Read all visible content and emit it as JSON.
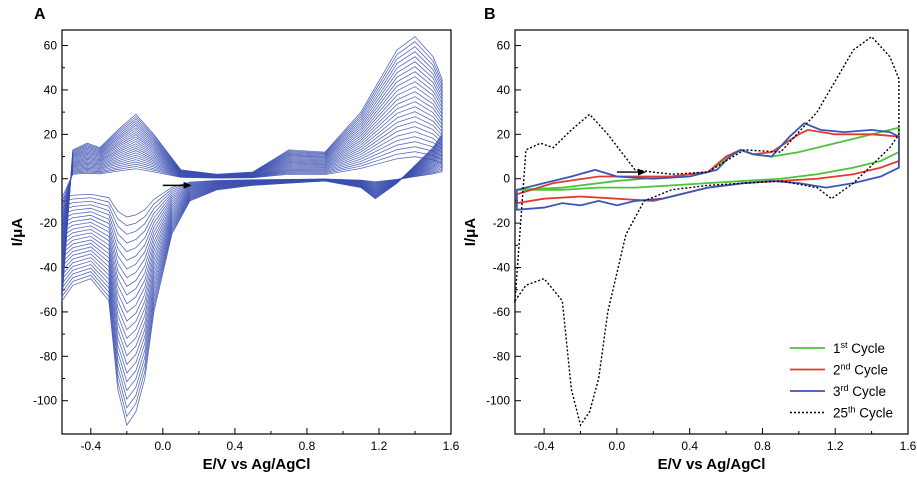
{
  "figure": {
    "panels": [
      "A",
      "B"
    ]
  },
  "chart_data": [
    {
      "panel": "A",
      "type": "line",
      "title": "",
      "xlabel": "E/V vs Ag/AgCl",
      "ylabel": "I/μA",
      "xlim": [
        -0.56,
        1.6
      ],
      "ylim": [
        -115,
        67
      ],
      "xticks": [
        -0.4,
        0.0,
        0.4,
        0.8,
        1.2,
        1.6
      ],
      "xtick_labels": [
        "-0.4",
        "0.0",
        "0.4",
        "0.8",
        "1.2",
        "1.6"
      ],
      "yticks": [
        -100,
        -80,
        -60,
        -40,
        -20,
        0,
        20,
        40,
        60
      ],
      "ytick_labels": [
        "-100",
        "-80",
        "-60",
        "-40",
        "-20",
        "0",
        "20",
        "40",
        "60"
      ],
      "grid": false,
      "cycles_shown": 25,
      "scan_direction": "anodic (positive-going)",
      "series_color": "#3b4fb0",
      "anodic_peaks_final": {
        "x": [
          -0.42,
          -0.15,
          0.7,
          1.4
        ],
        "y": [
          16,
          29,
          13,
          64
        ]
      },
      "cathodic_peaks_final": {
        "x": [
          -0.2,
          0.2,
          1.15
        ],
        "y": [
          -111,
          -12,
          -9
        ]
      },
      "envelope_final_cycle_x": [
        -0.56,
        -0.5,
        -0.42,
        -0.35,
        -0.25,
        -0.15,
        -0.05,
        0.1,
        0.3,
        0.5,
        0.7,
        0.9,
        1.1,
        1.3,
        1.4,
        1.5,
        1.55,
        1.55,
        1.5,
        1.4,
        1.3,
        1.18,
        1.1,
        0.9,
        0.7,
        0.5,
        0.3,
        0.15,
        0.05,
        -0.05,
        -0.1,
        -0.15,
        -0.2,
        -0.25,
        -0.3,
        -0.4,
        -0.5,
        -0.56
      ],
      "envelope_final_cycle_y": [
        -55,
        13,
        16,
        14,
        22,
        29,
        20,
        4,
        2,
        3,
        13,
        12,
        30,
        58,
        64,
        55,
        45,
        20,
        14,
        6,
        -2,
        -9,
        -4,
        -1,
        -2,
        -3,
        -5,
        -10,
        -25,
        -60,
        -90,
        -105,
        -111,
        -95,
        -55,
        -45,
        -48,
        -55
      ]
    },
    {
      "panel": "B",
      "type": "line",
      "title": "",
      "xlabel": "E/V vs Ag/AgCl",
      "ylabel": "I/μA",
      "xlim": [
        -0.56,
        1.6
      ],
      "ylim": [
        -115,
        67
      ],
      "xticks": [
        -0.4,
        0.0,
        0.4,
        0.8,
        1.2,
        1.6
      ],
      "xtick_labels": [
        "-0.4",
        "0.0",
        "0.4",
        "0.8",
        "1.2",
        "1.6"
      ],
      "yticks": [
        -100,
        -80,
        -60,
        -40,
        -20,
        0,
        20,
        40,
        60
      ],
      "ytick_labels": [
        "-100",
        "-80",
        "-60",
        "-40",
        "-20",
        "0",
        "20",
        "40",
        "60"
      ],
      "grid": false,
      "legend_position": "bottom-right",
      "series": [
        {
          "name_main": "1",
          "name_sup": "st",
          "name_rest": " Cycle",
          "color": "#4cc43a",
          "dash": "solid",
          "x": [
            -0.55,
            -0.3,
            0.0,
            0.3,
            0.5,
            0.6,
            0.68,
            0.75,
            0.85,
            1.0,
            1.2,
            1.4,
            1.5,
            1.55,
            1.55,
            1.45,
            1.3,
            1.1,
            0.9,
            0.7,
            0.5,
            0.3,
            0.1,
            -0.1,
            -0.3,
            -0.55
          ],
          "y": [
            -5,
            -4,
            -1,
            1,
            3,
            9,
            13,
            11,
            10,
            12,
            16,
            20,
            22,
            23,
            12,
            8,
            5,
            2,
            0,
            -1,
            -2,
            -3,
            -4,
            -4,
            -5,
            -5
          ]
        },
        {
          "name_main": "2",
          "name_sup": "nd",
          "name_rest": " Cycle",
          "color": "#e23a2e",
          "dash": "solid",
          "x": [
            -0.55,
            -0.35,
            -0.1,
            0.1,
            0.3,
            0.5,
            0.6,
            0.68,
            0.75,
            0.85,
            1.0,
            1.05,
            1.2,
            1.4,
            1.55,
            1.55,
            1.45,
            1.3,
            1.1,
            0.9,
            0.7,
            0.5,
            0.3,
            0.2,
            0.0,
            -0.2,
            -0.4,
            -0.55
          ],
          "y": [
            -7,
            -2,
            1,
            1,
            1,
            3,
            10,
            13,
            11,
            12,
            20,
            22,
            20,
            20,
            19,
            8,
            5,
            2,
            0,
            -1,
            -2,
            -4,
            -8,
            -10,
            -9,
            -8,
            -9,
            -11
          ]
        },
        {
          "name_main": "3",
          "name_sup": "rd",
          "name_rest": " Cycle",
          "color": "#3a56b5",
          "dash": "solid",
          "x": [
            -0.55,
            -0.4,
            -0.25,
            -0.12,
            0.0,
            0.2,
            0.4,
            0.55,
            0.62,
            0.68,
            0.75,
            0.85,
            0.95,
            1.03,
            1.12,
            1.25,
            1.4,
            1.5,
            1.55,
            1.55,
            1.45,
            1.3,
            1.15,
            1.0,
            0.85,
            0.7,
            0.5,
            0.35,
            0.25,
            0.1,
            0.0,
            -0.1,
            -0.2,
            -0.3,
            -0.4,
            -0.55
          ],
          "y": [
            -5,
            -2,
            1,
            4,
            1,
            0,
            1,
            4,
            10,
            13,
            11,
            10,
            19,
            25,
            22,
            21,
            22,
            21,
            19,
            5,
            1,
            -2,
            -4,
            -2,
            -1,
            -2,
            -4,
            -7,
            -9,
            -10,
            -12,
            -10,
            -12,
            -11,
            -13,
            -14
          ]
        },
        {
          "name_main": "25",
          "name_sup": "th",
          "name_rest": " Cycle",
          "color": "#000000",
          "dash": "dotted",
          "x": [
            -0.56,
            -0.5,
            -0.42,
            -0.35,
            -0.25,
            -0.15,
            -0.05,
            0.1,
            0.3,
            0.5,
            0.7,
            0.9,
            1.1,
            1.3,
            1.4,
            1.5,
            1.55,
            1.55,
            1.5,
            1.4,
            1.3,
            1.18,
            1.1,
            0.9,
            0.7,
            0.5,
            0.3,
            0.15,
            0.05,
            -0.05,
            -0.1,
            -0.15,
            -0.2,
            -0.25,
            -0.3,
            -0.4,
            -0.5,
            -0.56
          ],
          "y": [
            -55,
            13,
            16,
            14,
            22,
            29,
            20,
            4,
            2,
            3,
            13,
            12,
            30,
            58,
            64,
            55,
            45,
            20,
            14,
            6,
            -2,
            -9,
            -4,
            -1,
            -2,
            -3,
            -5,
            -10,
            -25,
            -60,
            -90,
            -105,
            -111,
            -95,
            -55,
            -45,
            -48,
            -55
          ]
        }
      ]
    }
  ]
}
